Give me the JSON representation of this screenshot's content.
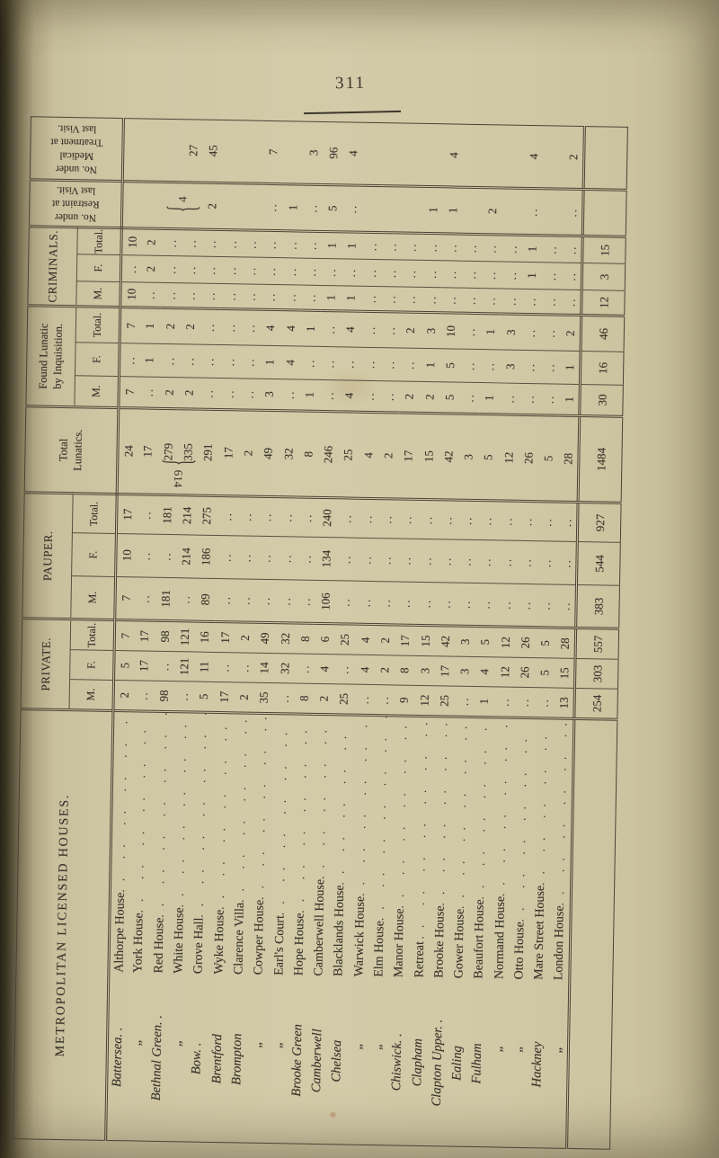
{
  "page": {
    "number": "311"
  },
  "table": {
    "title": "METROPOLITAN LICENSED HOUSES.",
    "headers": {
      "private": "PRIVATE.",
      "pauper": "PAUPER.",
      "total_lunatics": "Total\nLunatics.",
      "inquisition": "Found Lunatic\nby Inquisition.",
      "criminals": "CRIMINALS.",
      "restraint": "No. under\nRestraint at\nlast Visit.",
      "medical": "No. under\nMedical\nTreatment at\nlast Visit."
    },
    "sub_headers": {
      "m": "M.",
      "f": "F.",
      "total": "Total."
    },
    "annotations": {
      "lunatics_group_total": "614",
      "restraint_group_value": "4",
      "brace_glyph": "{"
    },
    "rows": [
      {
        "district": "Battersea. .",
        "name": "Althorpe House",
        "v": [
          "2",
          "5",
          "7",
          "7",
          "10",
          "17",
          "24",
          "7",
          "..",
          "7",
          "10",
          "..",
          "10",
          "",
          ""
        ]
      },
      {
        "district": "„",
        "name": "York House",
        "v": [
          "..",
          "17",
          "17",
          "..",
          "..",
          "..",
          "17",
          "..",
          "1",
          "1",
          "..",
          "2",
          "2",
          "",
          ""
        ]
      },
      {
        "district": "Bethnal Green. .",
        "name": "Red House",
        "v": [
          "98",
          "..",
          "98",
          "181",
          "..",
          "181",
          "279",
          "2",
          "..",
          "2",
          "..",
          "..",
          "..",
          "",
          ""
        ]
      },
      {
        "district": "„",
        "name": "White House",
        "v": [
          "..",
          "121",
          "121",
          "..",
          "214",
          "214",
          "335",
          "2",
          "..",
          "2",
          "..",
          "..",
          "..",
          "",
          "27"
        ]
      },
      {
        "district": "Bow. .",
        "name": "Grove Hall",
        "v": [
          "5",
          "11",
          "16",
          "89",
          "186",
          "275",
          "291",
          "..",
          "..",
          "..",
          "..",
          "..",
          "..",
          "2",
          "45"
        ]
      },
      {
        "district": "Brentford",
        "name": "Wyke House",
        "v": [
          "17",
          "..",
          "17",
          "..",
          "..",
          "..",
          "17",
          "..",
          "..",
          "..",
          "..",
          "..",
          "..",
          "",
          ""
        ]
      },
      {
        "district": "Brompton",
        "name": "Clarence Villa",
        "v": [
          "2",
          "..",
          "2",
          "..",
          "..",
          "..",
          "2",
          "..",
          "..",
          "..",
          "..",
          "..",
          "..",
          "",
          ""
        ]
      },
      {
        "district": "„",
        "name": "Cowper House",
        "v": [
          "35",
          "14",
          "49",
          "..",
          "..",
          "..",
          "49",
          "3",
          "1",
          "4",
          "..",
          "..",
          "..",
          "..",
          "7"
        ]
      },
      {
        "district": "„",
        "name": "Earl's Court",
        "v": [
          "..",
          "32",
          "32",
          "..",
          "..",
          "..",
          "32",
          "..",
          "4",
          "4",
          "..",
          "..",
          "..",
          "1",
          ""
        ]
      },
      {
        "district": "Brooke Green",
        "name": "Hope House",
        "v": [
          "8",
          "..",
          "8",
          "..",
          "..",
          "..",
          "8",
          "1",
          "..",
          "1",
          "..",
          "..",
          "..",
          "..",
          "3"
        ]
      },
      {
        "district": "Camberwell",
        "name": "Camberwell House",
        "v": [
          "2",
          "4",
          "6",
          "106",
          "134",
          "240",
          "246",
          "..",
          "..",
          "..",
          "1",
          "..",
          "1",
          "5",
          "96"
        ]
      },
      {
        "district": "Chelsea",
        "name": "Blacklands House",
        "v": [
          "25",
          "..",
          "25",
          "..",
          "..",
          "..",
          "25",
          "4",
          "..",
          "4",
          "1",
          "..",
          "1",
          "..",
          "4"
        ]
      },
      {
        "district": "„",
        "name": "Warwick House",
        "v": [
          "..",
          "4",
          "4",
          "..",
          "..",
          "..",
          "4",
          "..",
          "..",
          "..",
          "..",
          "..",
          "..",
          "",
          ""
        ]
      },
      {
        "district": "„",
        "name": "Elm House",
        "v": [
          "..",
          "2",
          "2",
          "..",
          "..",
          "..",
          "2",
          "..",
          "..",
          "..",
          "..",
          "..",
          "..",
          "",
          ""
        ]
      },
      {
        "district": "Chiswick. .",
        "name": "Manor House",
        "v": [
          "9",
          "8",
          "17",
          "..",
          "..",
          "..",
          "17",
          "2",
          "..",
          "2",
          "..",
          "..",
          "..",
          "",
          ""
        ]
      },
      {
        "district": "Clapham",
        "name": "Retreat",
        "v": [
          "12",
          "3",
          "15",
          "..",
          "..",
          "..",
          "15",
          "2",
          "1",
          "3",
          "..",
          "..",
          "..",
          "1",
          ""
        ]
      },
      {
        "district": "Clapton Upper. .",
        "name": "Brooke House",
        "v": [
          "25",
          "17",
          "42",
          "..",
          "..",
          "..",
          "42",
          "5",
          "5",
          "10",
          "..",
          "..",
          "..",
          "1",
          "4"
        ]
      },
      {
        "district": "Ealing",
        "name": "Gower House",
        "v": [
          "..",
          "3",
          "3",
          "..",
          "..",
          "..",
          "3",
          "..",
          "..",
          "..",
          "..",
          "..",
          "..",
          "",
          ""
        ]
      },
      {
        "district": "Fulham",
        "name": "Beaufort House",
        "v": [
          "1",
          "4",
          "5",
          "..",
          "..",
          "..",
          "5",
          "1",
          "..",
          "1",
          "..",
          "..",
          "..",
          "2",
          ""
        ]
      },
      {
        "district": "„",
        "name": "Normand House",
        "v": [
          "..",
          "12",
          "12",
          "..",
          "..",
          "..",
          "12",
          "..",
          "3",
          "3",
          "..",
          "..",
          "..",
          "",
          ""
        ]
      },
      {
        "district": "„",
        "name": "Otto House",
        "v": [
          "..",
          "26",
          "26",
          "..",
          "..",
          "..",
          "26",
          "..",
          "..",
          "..",
          "..",
          "1",
          "1",
          "..",
          "4"
        ]
      },
      {
        "district": "Hackney",
        "name": "Mare Street House",
        "v": [
          "..",
          "5",
          "5",
          "..",
          "..",
          "..",
          "5",
          "..",
          "..",
          "..",
          "..",
          "..",
          "..",
          "",
          ""
        ]
      },
      {
        "district": "„",
        "name": "London House",
        "v": [
          "13",
          "15",
          "28",
          "..",
          "..",
          "..",
          "28",
          "1",
          "1",
          "2",
          "..",
          "..",
          "..",
          "..",
          "2"
        ]
      }
    ],
    "totals": [
      "254",
      "303",
      "557",
      "383",
      "544",
      "927",
      "1484",
      "30",
      "16",
      "46",
      "12",
      "3",
      "15",
      "",
      ""
    ]
  }
}
